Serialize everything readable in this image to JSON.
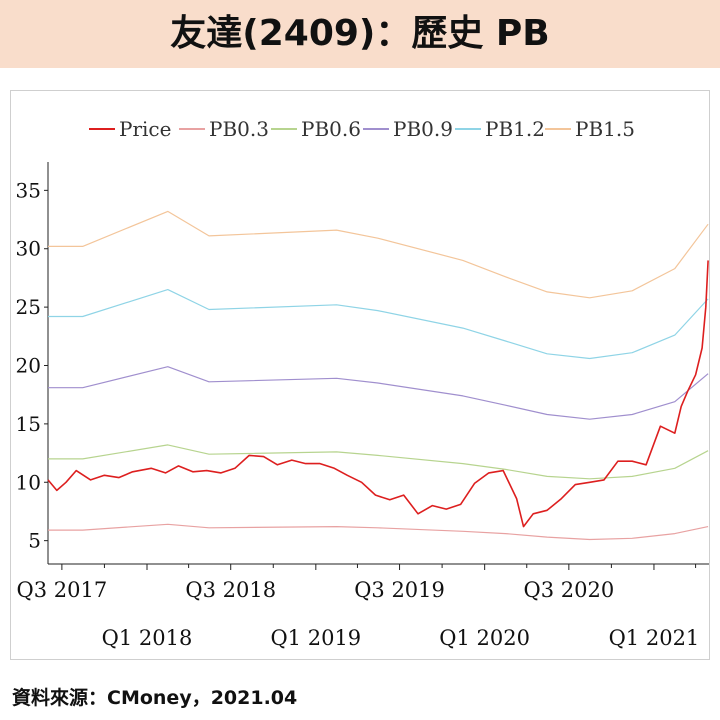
{
  "header": {
    "title": "友達(2409)：歷史 PB"
  },
  "footer": {
    "source": "資料來源：CMoney，2021.04"
  },
  "colors": {
    "title_bg": "#f9ddcb"
  },
  "chart_data": {
    "type": "line",
    "title": "",
    "xlabel": "",
    "ylabel": "",
    "ylim": [
      3,
      37
    ],
    "yticks": [
      5,
      10,
      15,
      20,
      25,
      30,
      35
    ],
    "xlim": [
      "2017-06-01",
      "2021-04-30"
    ],
    "xticks_upper": [
      {
        "date": "2017-07-01",
        "label": "Q3 2017"
      },
      {
        "date": "2018-07-01",
        "label": "Q3 2018"
      },
      {
        "date": "2019-07-01",
        "label": "Q3 2019"
      },
      {
        "date": "2020-07-01",
        "label": "Q3 2020"
      }
    ],
    "xticks_lower": [
      {
        "date": "2018-01-01",
        "label": "Q1 2018"
      },
      {
        "date": "2019-01-01",
        "label": "Q1 2019"
      },
      {
        "date": "2020-01-01",
        "label": "Q1 2020"
      },
      {
        "date": "2021-01-01",
        "label": "Q1 2021"
      }
    ],
    "minor_tick_dates": [
      "2017-10-01",
      "2018-04-01",
      "2018-10-01",
      "2019-04-01",
      "2019-10-01",
      "2020-04-01",
      "2020-10-01",
      "2021-04-01"
    ],
    "legend": "top",
    "series": [
      {
        "name": "Price",
        "color": "#dd1f1f",
        "width": 1.6,
        "x": [
          "2017-06-01",
          "2017-06-20",
          "2017-07-10",
          "2017-08-01",
          "2017-09-01",
          "2017-10-01",
          "2017-11-01",
          "2017-12-01",
          "2018-01-10",
          "2018-02-10",
          "2018-03-10",
          "2018-04-10",
          "2018-05-10",
          "2018-06-10",
          "2018-07-10",
          "2018-08-10",
          "2018-09-10",
          "2018-10-10",
          "2018-11-10",
          "2018-12-10",
          "2019-01-10",
          "2019-02-10",
          "2019-03-10",
          "2019-04-10",
          "2019-05-10",
          "2019-06-10",
          "2019-07-10",
          "2019-08-10",
          "2019-09-10",
          "2019-10-10",
          "2019-11-10",
          "2019-12-10",
          "2020-01-10",
          "2020-02-10",
          "2020-03-10",
          "2020-03-25",
          "2020-04-15",
          "2020-05-15",
          "2020-06-15",
          "2020-07-15",
          "2020-08-15",
          "2020-09-15",
          "2020-10-15",
          "2020-11-15",
          "2020-12-15",
          "2021-01-15",
          "2021-02-15",
          "2021-03-01",
          "2021-03-15",
          "2021-04-01",
          "2021-04-15",
          "2021-04-23",
          "2021-04-28"
        ],
        "y": [
          10.2,
          9.3,
          10.0,
          11.0,
          10.2,
          10.6,
          10.4,
          10.9,
          11.2,
          10.8,
          11.4,
          10.9,
          11.0,
          10.8,
          11.2,
          12.3,
          12.2,
          11.5,
          11.9,
          11.6,
          11.6,
          11.2,
          10.6,
          10.0,
          8.9,
          8.5,
          8.9,
          7.3,
          8.0,
          7.7,
          8.1,
          9.9,
          10.8,
          11.0,
          8.6,
          6.2,
          7.3,
          7.6,
          8.6,
          9.8,
          10.0,
          10.2,
          11.8,
          11.8,
          11.5,
          14.8,
          14.2,
          16.5,
          17.8,
          19.2,
          21.5,
          25.0,
          29.0
        ]
      },
      {
        "name": "PB0.3",
        "color": "#e8a2a2",
        "width": 1.2,
        "x": [
          "2017-06-01",
          "2017-08-15",
          "2018-02-15",
          "2018-05-15",
          "2019-02-15",
          "2019-05-15",
          "2019-11-15",
          "2020-02-15",
          "2020-05-15",
          "2020-08-15",
          "2020-11-15",
          "2021-02-15",
          "2021-04-28"
        ],
        "y": [
          5.9,
          5.9,
          6.4,
          6.1,
          6.2,
          6.1,
          5.8,
          5.6,
          5.3,
          5.1,
          5.2,
          5.6,
          6.2
        ]
      },
      {
        "name": "PB0.6",
        "color": "#b7d48f",
        "width": 1.2,
        "x": [
          "2017-06-01",
          "2017-08-15",
          "2018-02-15",
          "2018-05-15",
          "2019-02-15",
          "2019-05-15",
          "2019-11-15",
          "2020-02-15",
          "2020-05-15",
          "2020-08-15",
          "2020-11-15",
          "2021-02-15",
          "2021-04-28"
        ],
        "y": [
          12.0,
          12.0,
          13.2,
          12.4,
          12.6,
          12.3,
          11.6,
          11.1,
          10.5,
          10.3,
          10.5,
          11.2,
          12.7
        ]
      },
      {
        "name": "PB0.9",
        "color": "#a08fce",
        "width": 1.2,
        "x": [
          "2017-06-01",
          "2017-08-15",
          "2018-02-15",
          "2018-05-15",
          "2019-02-15",
          "2019-05-15",
          "2019-11-15",
          "2020-02-15",
          "2020-05-15",
          "2020-08-15",
          "2020-11-15",
          "2021-02-15",
          "2021-04-28"
        ],
        "y": [
          18.1,
          18.1,
          19.9,
          18.6,
          18.9,
          18.5,
          17.4,
          16.6,
          15.8,
          15.4,
          15.8,
          16.9,
          19.3
        ]
      },
      {
        "name": "PB1.2",
        "color": "#8fd4e6",
        "width": 1.2,
        "x": [
          "2017-06-01",
          "2017-08-15",
          "2018-02-15",
          "2018-05-15",
          "2019-02-15",
          "2019-05-15",
          "2019-11-15",
          "2020-02-15",
          "2020-05-15",
          "2020-08-15",
          "2020-11-15",
          "2021-02-15",
          "2021-04-28"
        ],
        "y": [
          24.2,
          24.2,
          26.5,
          24.8,
          25.2,
          24.7,
          23.2,
          22.1,
          21.0,
          20.6,
          21.1,
          22.6,
          25.7
        ]
      },
      {
        "name": "PB1.5",
        "color": "#f3c59a",
        "width": 1.2,
        "x": [
          "2017-06-01",
          "2017-08-15",
          "2018-02-15",
          "2018-05-15",
          "2019-02-15",
          "2019-05-15",
          "2019-11-15",
          "2020-02-15",
          "2020-05-15",
          "2020-08-15",
          "2020-11-15",
          "2021-02-15",
          "2021-04-28"
        ],
        "y": [
          30.2,
          30.2,
          33.2,
          31.1,
          31.6,
          30.9,
          29.0,
          27.6,
          26.3,
          25.8,
          26.4,
          28.3,
          32.1
        ]
      }
    ]
  }
}
